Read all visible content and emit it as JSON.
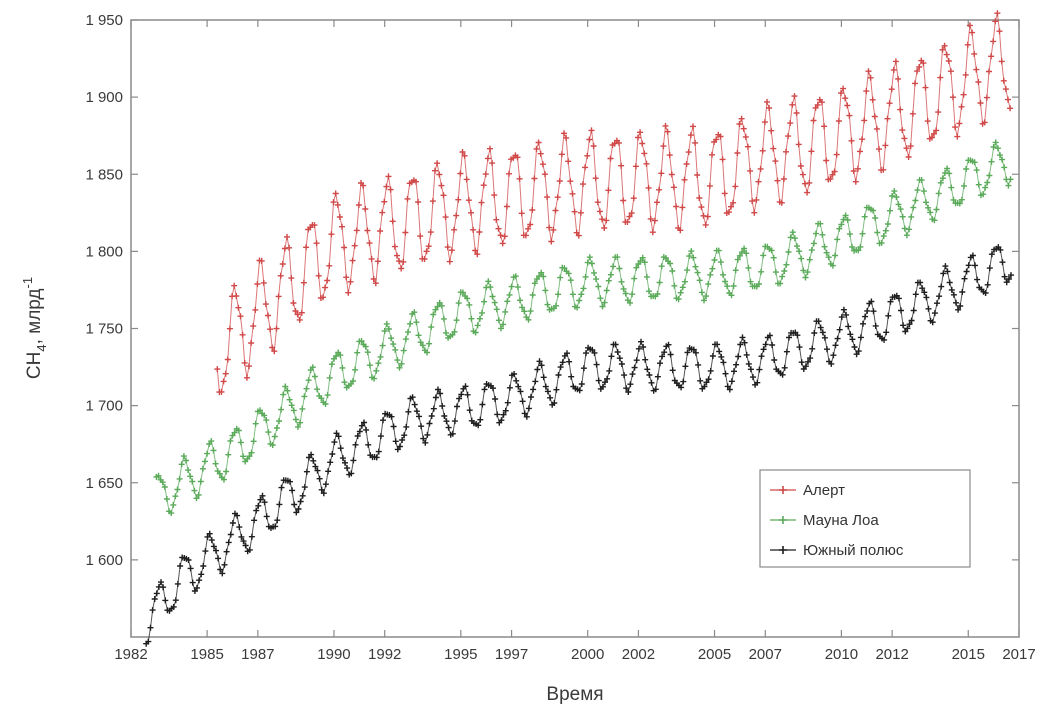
{
  "chart_data": {
    "type": "line",
    "title": "",
    "xlabel": "Время",
    "ylabel": "CH",
    "ylabel_sub": "4",
    "ylabel_rest": ", млрд",
    "ylabel_sup": "-1",
    "xlim": [
      1982,
      2017
    ],
    "ylim": [
      1550,
      1950
    ],
    "x_ticks": [
      1982,
      1985,
      1987,
      1990,
      1992,
      1995,
      1997,
      2000,
      2002,
      2005,
      2007,
      2010,
      2012,
      2015,
      2017
    ],
    "y_ticks": [
      1600,
      1650,
      1700,
      1750,
      1800,
      1850,
      1900,
      1950
    ],
    "y_tick_labels": [
      "1 600",
      "1 650",
      "1 700",
      "1 750",
      "1 800",
      "1 850",
      "1 900",
      "1 950"
    ],
    "grid": false,
    "legend_position": "bottom-right",
    "marker": "+",
    "series": [
      {
        "name": "Алерт",
        "color": "#d04848",
        "x_start": 1985.4,
        "x_end": 2016.7,
        "trend": [
          [
            1985.4,
            1735
          ],
          [
            1990,
            1805
          ],
          [
            1995,
            1830
          ],
          [
            2000,
            1845
          ],
          [
            2005,
            1848
          ],
          [
            2007,
            1862
          ],
          [
            2010,
            1875
          ],
          [
            2013,
            1895
          ],
          [
            2016.7,
            1925
          ]
        ],
        "amplitude": 30
      },
      {
        "name": "Мауна Лоа",
        "color": "#5aaa5a",
        "x_start": 1983.0,
        "x_end": 2016.7,
        "trend": [
          [
            1983,
            1640
          ],
          [
            1986,
            1670
          ],
          [
            1990,
            1720
          ],
          [
            1995,
            1760
          ],
          [
            2000,
            1780
          ],
          [
            2005,
            1785
          ],
          [
            2007,
            1790
          ],
          [
            2010,
            1808
          ],
          [
            2013,
            1830
          ],
          [
            2016.7,
            1860
          ]
        ],
        "amplitude": 14
      },
      {
        "name": "Южный полюс",
        "color": "#1e1e1e",
        "x_start": 1982.6,
        "x_end": 2016.7,
        "trend": [
          [
            1982.6,
            1560
          ],
          [
            1984,
            1588
          ],
          [
            1987,
            1625
          ],
          [
            1990,
            1665
          ],
          [
            1993,
            1690
          ],
          [
            1997,
            1705
          ],
          [
            2000,
            1725
          ],
          [
            2005,
            1725
          ],
          [
            2007,
            1730
          ],
          [
            2010,
            1745
          ],
          [
            2013,
            1765
          ],
          [
            2016.7,
            1795
          ]
        ],
        "amplitude": 14
      }
    ]
  }
}
